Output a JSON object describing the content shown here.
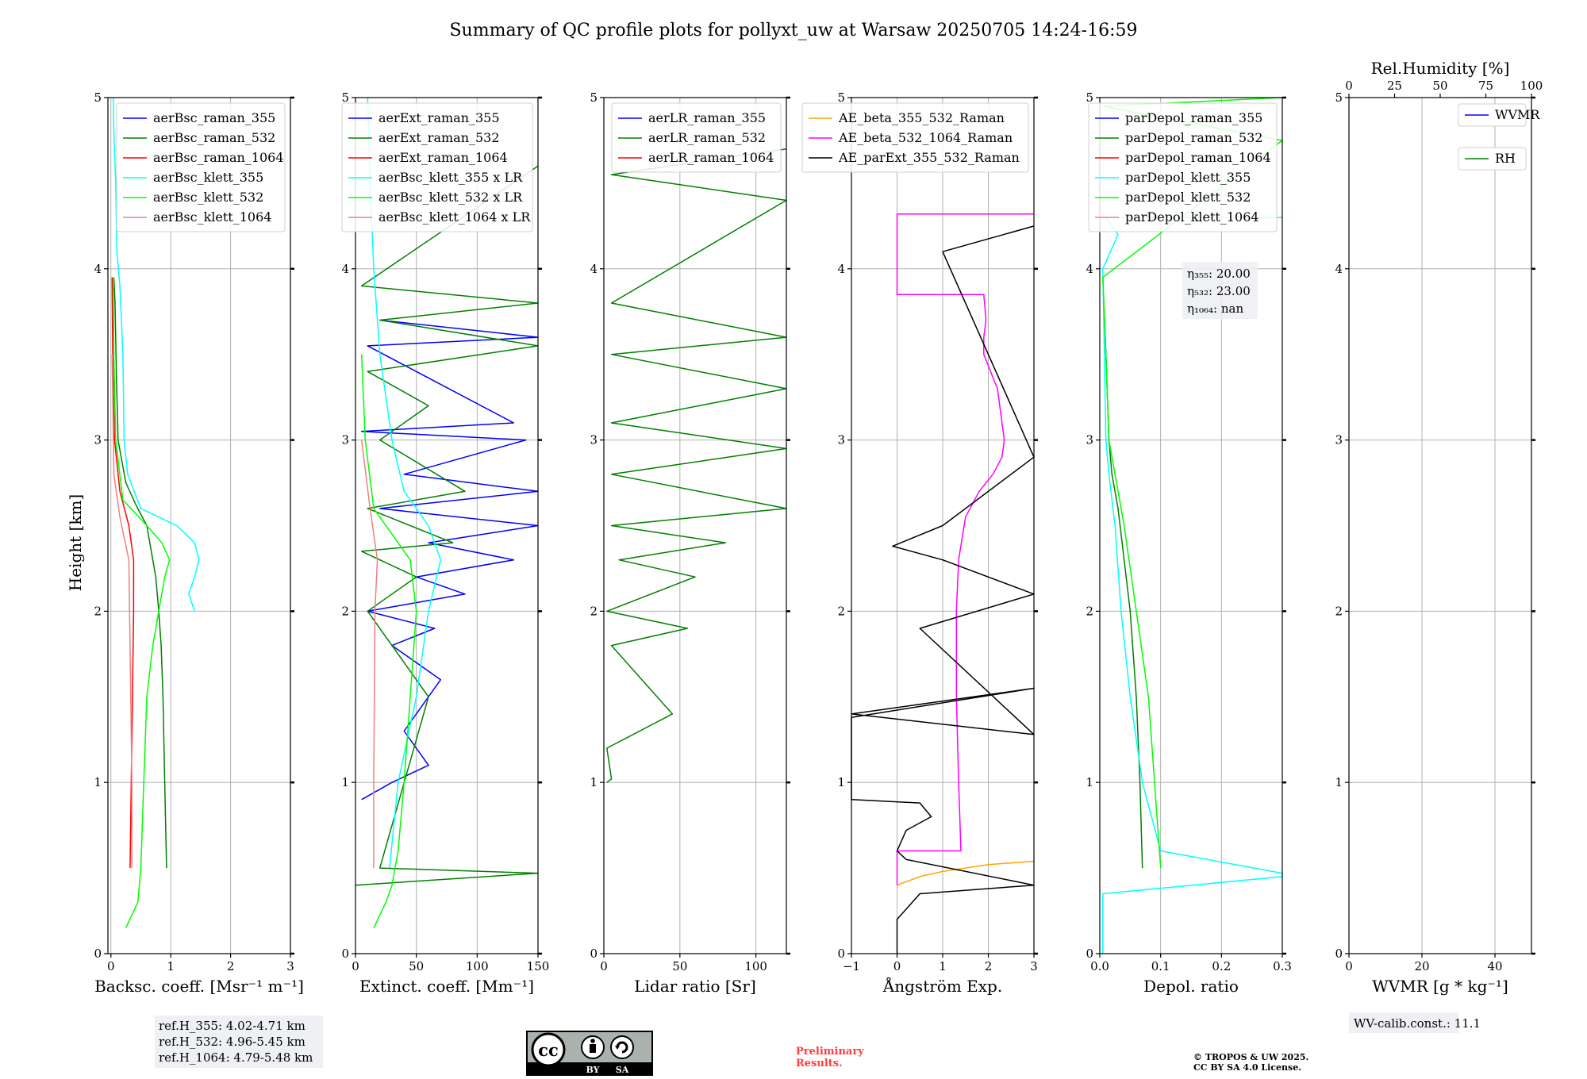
{
  "title": "Summary of QC profile plots for pollyxt_uw at Warsaw 20250705 14:24-16:59",
  "ylabel": "Height [km]",
  "chart_data": [
    {
      "type": "line",
      "id": "backscatter",
      "xlabel": "Backsc. coeff. [Msr⁻¹ m⁻¹]",
      "xlim": [
        -0.05,
        3.0
      ],
      "ylim": [
        0,
        5
      ],
      "xticks": [
        "0",
        "1",
        "2",
        "3"
      ],
      "xtick_values": [
        0,
        1,
        2,
        3
      ],
      "yticks": [
        "0",
        "1",
        "2",
        "3",
        "4",
        "5"
      ],
      "legend": "top-right",
      "series": [
        {
          "name": "aerBsc_raman_355",
          "color": "#0000ff",
          "x": [],
          "y": []
        },
        {
          "name": "aerBsc_raman_532",
          "color": "#008000",
          "x": [
            0.93,
            0.9,
            0.87,
            0.84,
            0.8,
            0.75,
            0.7,
            0.6,
            0.42,
            0.25,
            0.12,
            0.09,
            0.07,
            0.05
          ],
          "y": [
            0.5,
            1.0,
            1.5,
            1.8,
            2.0,
            2.2,
            2.3,
            2.5,
            2.62,
            2.75,
            3.0,
            3.4,
            3.8,
            3.95
          ]
        },
        {
          "name": "aerBsc_raman_1064",
          "color": "#ff0000",
          "x": [
            0.32,
            0.34,
            0.36,
            0.38,
            0.38,
            0.3,
            0.15,
            0.06,
            0.03,
            0.02
          ],
          "y": [
            0.5,
            1.0,
            1.5,
            2.0,
            2.3,
            2.5,
            2.7,
            3.0,
            3.5,
            3.95
          ]
        },
        {
          "name": "aerBsc_klett_355",
          "color": "#00ffff",
          "x": [
            1.4,
            1.3,
            1.4,
            1.47,
            1.4,
            1.1,
            0.5,
            0.28,
            0.22,
            0.2,
            0.15,
            0.1,
            0.08,
            0.05,
            0.04
          ],
          "y": [
            2.0,
            2.1,
            2.2,
            2.3,
            2.4,
            2.5,
            2.6,
            2.8,
            3.0,
            3.5,
            3.9,
            4.1,
            4.5,
            4.8,
            5.0
          ]
        },
        {
          "name": "aerBsc_klett_532",
          "color": "#00ff00",
          "x": [
            0.25,
            0.45,
            0.5,
            0.55,
            0.6,
            0.7,
            0.8,
            0.9,
            0.98,
            0.85,
            0.6,
            0.2,
            0.08,
            0.05,
            0.04
          ],
          "y": [
            0.15,
            0.3,
            0.5,
            1.0,
            1.5,
            1.8,
            2.0,
            2.2,
            2.3,
            2.4,
            2.5,
            2.65,
            3.0,
            3.5,
            3.95
          ]
        },
        {
          "name": "aerBsc_klett_1064",
          "color": "#f08080",
          "x": [
            0.35,
            0.35,
            0.3,
            0.15,
            0.05,
            0.02
          ],
          "y": [
            0.5,
            1.0,
            2.3,
            2.55,
            2.8,
            3.5
          ]
        }
      ]
    },
    {
      "type": "line",
      "id": "extinction",
      "xlabel": "Extinct. coeff. [Mm⁻¹]",
      "xlim": [
        0,
        150
      ],
      "ylim": [
        0,
        5
      ],
      "xticks": [
        "0",
        "50",
        "100",
        "150"
      ],
      "xtick_values": [
        0,
        50,
        100,
        150
      ],
      "yticks": [
        "0",
        "1",
        "2",
        "3",
        "4",
        "5"
      ],
      "legend": "top-right",
      "series": [
        {
          "name": "aerExt_raman_355",
          "color": "#0000ff",
          "x": [
            5,
            30,
            60,
            40,
            70,
            30,
            65,
            10,
            90,
            50,
            130,
            60,
            150,
            20,
            150,
            40,
            140,
            5,
            130,
            10,
            150,
            20
          ],
          "y": [
            0.9,
            1.0,
            1.1,
            1.3,
            1.6,
            1.8,
            1.9,
            2.0,
            2.1,
            2.2,
            2.3,
            2.4,
            2.5,
            2.6,
            2.7,
            2.8,
            3.0,
            3.05,
            3.1,
            3.55,
            3.6,
            3.7
          ]
        },
        {
          "name": "aerExt_raman_532",
          "color": "#008000",
          "x": [
            0,
            150,
            20,
            60,
            10,
            50,
            5,
            80,
            10,
            90,
            20,
            60,
            10,
            150,
            20,
            150,
            5,
            150
          ],
          "y": [
            0.4,
            0.47,
            0.5,
            1.5,
            2.0,
            2.2,
            2.35,
            2.4,
            2.6,
            2.7,
            3.0,
            3.2,
            3.4,
            3.55,
            3.7,
            3.8,
            3.9,
            4.6
          ]
        },
        {
          "name": "aerExt_raman_1064",
          "color": "#ff0000",
          "x": [],
          "y": []
        },
        {
          "name": "aerBsc_klett_355 x LR",
          "color": "#00ffff",
          "x": [
            28,
            35,
            50,
            60,
            70,
            60,
            40,
            30,
            20,
            15,
            12,
            10
          ],
          "y": [
            0.5,
            1.0,
            1.5,
            2.0,
            2.3,
            2.5,
            2.7,
            3.0,
            3.5,
            4.0,
            4.5,
            5.0
          ]
        },
        {
          "name": "aerBsc_klett_532 x LR",
          "color": "#00ff00",
          "x": [
            15,
            25,
            30,
            35,
            40,
            45,
            50,
            45,
            30,
            15,
            8,
            5
          ],
          "y": [
            0.15,
            0.3,
            0.4,
            0.6,
            1.0,
            1.5,
            2.0,
            2.3,
            2.45,
            2.6,
            3.0,
            3.5
          ]
        },
        {
          "name": "aerBsc_klett_1064 x LR",
          "color": "#f08080",
          "x": [
            15,
            15,
            16,
            18,
            12,
            5
          ],
          "y": [
            0.5,
            1.0,
            2.0,
            2.3,
            2.6,
            3.0
          ]
        }
      ]
    },
    {
      "type": "line",
      "id": "lidar_ratio",
      "xlabel": "Lidar ratio [Sr]",
      "xlim": [
        0,
        120
      ],
      "ylim": [
        0,
        5
      ],
      "xticks": [
        "0",
        "50",
        "100"
      ],
      "xtick_values": [
        0,
        50,
        100
      ],
      "yticks": [
        "0",
        "1",
        "2",
        "3",
        "4",
        "5"
      ],
      "legend": "top-right",
      "series": [
        {
          "name": "aerLR_raman_355",
          "color": "#0000ff",
          "x": [],
          "y": []
        },
        {
          "name": "aerLR_raman_532",
          "color": "#008000",
          "x": [
            2,
            5,
            2,
            45,
            5,
            55,
            2,
            60,
            10,
            80,
            5,
            120,
            5,
            120,
            5,
            120,
            5,
            120,
            5,
            120,
            5,
            120
          ],
          "y": [
            1.0,
            1.02,
            1.2,
            1.4,
            1.8,
            1.9,
            2.0,
            2.2,
            2.3,
            2.4,
            2.5,
            2.6,
            2.8,
            2.95,
            3.1,
            3.3,
            3.5,
            3.6,
            3.8,
            4.4,
            4.55,
            4.7
          ]
        },
        {
          "name": "aerLR_raman_1064",
          "color": "#ff0000",
          "x": [],
          "y": []
        }
      ]
    },
    {
      "type": "line",
      "id": "angstrom",
      "xlabel": "Ångström Exp.",
      "xlim": [
        -1,
        3
      ],
      "ylim": [
        0,
        5
      ],
      "xticks": [
        "−1",
        "0",
        "1",
        "2",
        "3"
      ],
      "xtick_values": [
        -1,
        0,
        1,
        2,
        3
      ],
      "yticks": [
        "0",
        "1",
        "2",
        "3",
        "4",
        "5"
      ],
      "legend": "top-right",
      "series": [
        {
          "name": "AE_beta_355_532_Raman",
          "color": "#ffa500",
          "x": [
            0.0,
            0.5,
            1.0,
            2.0,
            3.0
          ],
          "y": [
            0.4,
            0.45,
            0.48,
            0.52,
            0.54
          ]
        },
        {
          "name": "AE_beta_532_1064_Raman",
          "color": "#ff00ff",
          "x": [
            0.0,
            0.0,
            1.4,
            1.35,
            1.3,
            1.3,
            1.35,
            1.5,
            1.8,
            2.1,
            2.3,
            2.35,
            2.3,
            2.2,
            1.9,
            1.9,
            1.95,
            1.9,
            0.0,
            0.0,
            3.0
          ],
          "y": [
            0.4,
            0.6,
            0.6,
            1.0,
            1.5,
            2.0,
            2.3,
            2.55,
            2.7,
            2.8,
            2.9,
            3.0,
            3.1,
            3.3,
            3.5,
            3.6,
            3.7,
            3.85,
            3.85,
            4.32,
            4.32
          ]
        },
        {
          "name": "AE_parExt_355_532_Raman",
          "color": "#000000",
          "x": [
            0.0,
            0.0,
            0.5,
            3.0,
            0.2,
            0.0,
            0.2,
            0.75,
            0.5,
            -1.0,
            -1.0,
            3.0,
            -1.0,
            3.0,
            0.5,
            3.0,
            1.0,
            -0.1,
            1.0,
            3.0,
            1.0,
            3.0
          ],
          "y": [
            0.0,
            0.2,
            0.35,
            0.4,
            0.55,
            0.6,
            0.72,
            0.8,
            0.88,
            0.9,
            1.38,
            1.55,
            1.4,
            1.28,
            1.9,
            2.1,
            2.3,
            2.38,
            2.5,
            2.9,
            4.1,
            4.25
          ]
        }
      ]
    },
    {
      "type": "line",
      "id": "depol",
      "xlabel": "Depol. ratio",
      "xlim": [
        0,
        0.3
      ],
      "ylim": [
        0,
        5
      ],
      "xticks": [
        "0.0",
        "0.1",
        "0.2",
        "0.3"
      ],
      "xtick_values": [
        0,
        0.1,
        0.2,
        0.3
      ],
      "yticks": [
        "0",
        "1",
        "2",
        "3",
        "4",
        "5"
      ],
      "legend": "top-right",
      "series": [
        {
          "name": "parDepol_raman_355",
          "color": "#0000ff",
          "x": [],
          "y": []
        },
        {
          "name": "parDepol_raman_532",
          "color": "#008000",
          "x": [
            0.07,
            0.066,
            0.06,
            0.05,
            0.04,
            0.03,
            0.02,
            0.015,
            0.01,
            0.005
          ],
          "y": [
            0.5,
            1.0,
            1.5,
            2.0,
            2.3,
            2.6,
            2.8,
            3.0,
            3.5,
            3.95
          ]
        },
        {
          "name": "parDepol_raman_1064",
          "color": "#ff0000",
          "x": [],
          "y": []
        },
        {
          "name": "parDepol_klett_355",
          "color": "#00ffff",
          "x": [
            0.005,
            0.005,
            0.3,
            0.3,
            0.1,
            0.07,
            0.05,
            0.035,
            0.025,
            0.015,
            0.01,
            0.005,
            0.03,
            0.01,
            0.3
          ],
          "y": [
            0.0,
            0.35,
            0.45,
            0.47,
            0.6,
            1.0,
            1.5,
            2.0,
            2.5,
            2.8,
            3.0,
            4.0,
            4.2,
            4.3,
            4.3
          ]
        },
        {
          "name": "parDepol_klett_532",
          "color": "#00ff00",
          "x": [
            0.1,
            0.09,
            0.08,
            0.06,
            0.04,
            0.025,
            0.015,
            0.01,
            0.005,
            0.3,
            0.005,
            0.3
          ],
          "y": [
            0.5,
            1.0,
            1.5,
            2.0,
            2.5,
            2.8,
            3.0,
            3.5,
            3.95,
            4.75,
            4.95,
            5.0
          ]
        },
        {
          "name": "parDepol_klett_1064",
          "color": "#f08080",
          "x": [],
          "y": []
        }
      ]
    },
    {
      "type": "line",
      "id": "wvmr",
      "xlabel": "WVMR [g * kg⁻¹]",
      "top_xlabel": "Rel.Humidity [%]",
      "xlim": [
        0,
        50
      ],
      "ylim": [
        0,
        5
      ],
      "xticks": [
        "0",
        "20",
        "40"
      ],
      "xtick_values": [
        0,
        20,
        40
      ],
      "top_xticks": [
        "0",
        "25",
        "50",
        "75",
        "100"
      ],
      "top_xtick_values": [
        0,
        25,
        50,
        75,
        100
      ],
      "yticks": [
        "0",
        "1",
        "2",
        "3",
        "4",
        "5"
      ],
      "legend": "top-right",
      "series": [
        {
          "name": "WVMR",
          "color": "#0000ff",
          "x": [],
          "y": []
        },
        {
          "name": "RH",
          "color": "#008000",
          "x": [],
          "y": []
        }
      ]
    }
  ],
  "annotations": {
    "eta": [
      "η₃₅₅: 20.00",
      "η₅₃₂: 23.00",
      "η₁₀₆₄: nan"
    ],
    "ref_h": [
      "ref.H_355: 4.02-4.71 km",
      "ref.H_532: 4.96-5.45 km",
      "ref.H_1064: 4.79-5.48 km"
    ],
    "wv_calib": "WV-calib.const.: 11.1",
    "preliminary": [
      "Preliminary",
      "Results."
    ],
    "copyright": [
      "© TROPOS & UW 2025.",
      "CC BY SA 4.0 License."
    ],
    "cc_labels": [
      "cc",
      "BY",
      "SA"
    ]
  }
}
